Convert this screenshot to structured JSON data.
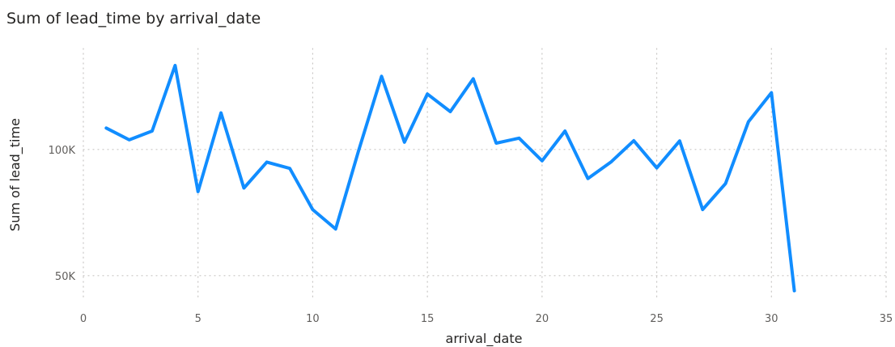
{
  "chart_data": {
    "type": "line",
    "title": "Sum of lead_time by arrival_date",
    "xlabel": "arrival_date",
    "ylabel": "Sum of lead_time",
    "xlim": [
      0,
      35
    ],
    "ylim": [
      40000,
      140000
    ],
    "x_ticks": [
      0,
      5,
      10,
      15,
      20,
      25,
      30,
      35
    ],
    "x_tick_labels": [
      "0",
      "5",
      "10",
      "15",
      "20",
      "25",
      "30",
      "35"
    ],
    "y_ticks": [
      50000,
      100000
    ],
    "y_tick_labels": [
      "50K",
      "100K"
    ],
    "grid": true,
    "legend": "none",
    "series": [
      {
        "color": "#118DFF",
        "x": [
          1,
          2,
          3,
          4,
          5,
          6,
          7,
          8,
          9,
          10,
          11,
          12,
          13,
          14,
          15,
          16,
          17,
          18,
          19,
          20,
          21,
          22,
          23,
          24,
          25,
          26,
          27,
          28,
          29,
          30,
          31
        ],
        "y": [
          108500,
          103800,
          107300,
          133300,
          83300,
          114500,
          84700,
          95000,
          92500,
          76200,
          68500,
          99500,
          129000,
          102900,
          122000,
          115000,
          128000,
          102500,
          104500,
          95500,
          107300,
          88500,
          95000,
          103500,
          92700,
          103400,
          76200,
          86500,
          111000,
          122500,
          44000
        ]
      }
    ]
  }
}
